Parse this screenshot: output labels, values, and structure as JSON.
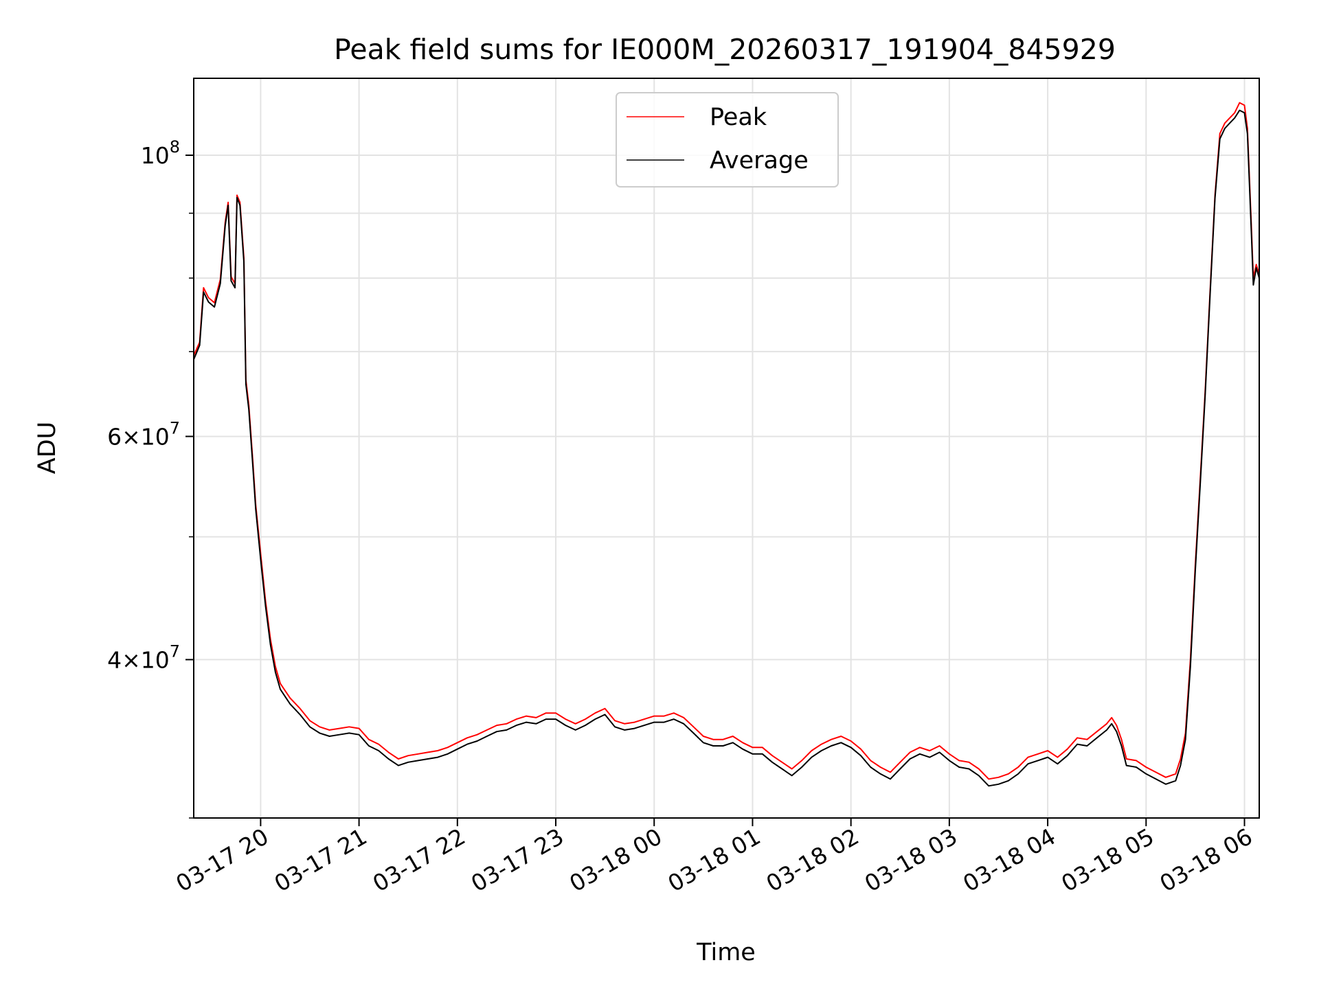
{
  "chart_data": {
    "type": "line",
    "title": "Peak field sums for IE000M_20260317_191904_845929",
    "xlabel": "Time",
    "ylabel": "ADU",
    "yscale": "log",
    "ylim": [
      30000000,
      115000000
    ],
    "xlim_hours": [
      -0.68,
      10.15
    ],
    "x_unit": "hours since 03-17 20:00",
    "grid": true,
    "legend_position": "top-center",
    "x_ticks": [
      {
        "hour": 0,
        "label": "03-17 20"
      },
      {
        "hour": 1,
        "label": "03-17 21"
      },
      {
        "hour": 2,
        "label": "03-17 22"
      },
      {
        "hour": 3,
        "label": "03-17 23"
      },
      {
        "hour": 4,
        "label": "03-18 00"
      },
      {
        "hour": 5,
        "label": "03-18 01"
      },
      {
        "hour": 6,
        "label": "03-18 02"
      },
      {
        "hour": 7,
        "label": "03-18 03"
      },
      {
        "hour": 8,
        "label": "03-18 04"
      },
      {
        "hour": 9,
        "label": "03-18 05"
      },
      {
        "hour": 10,
        "label": "03-18 06"
      }
    ],
    "y_ticks_major": [
      {
        "value": 40000000,
        "base": "4",
        "exp": "7",
        "mantissa": true
      },
      {
        "value": 60000000,
        "base": "6",
        "exp": "7",
        "mantissa": true
      },
      {
        "value": 100000000,
        "base": "10",
        "exp": "8",
        "mantissa": false
      }
    ],
    "y_ticks_minor": [
      30000000,
      50000000,
      70000000,
      80000000,
      90000000
    ],
    "series": [
      {
        "name": "Peak",
        "color": "#ff0000",
        "points": [
          [
            -0.68,
            69500000
          ],
          [
            -0.62,
            71200000
          ],
          [
            -0.58,
            78600000
          ],
          [
            -0.53,
            77200000
          ],
          [
            -0.47,
            76500000
          ],
          [
            -0.41,
            79800000
          ],
          [
            -0.36,
            88500000
          ],
          [
            -0.33,
            91800000
          ],
          [
            -0.3,
            80200000
          ],
          [
            -0.26,
            79200000
          ],
          [
            -0.24,
            93000000
          ],
          [
            -0.21,
            91800000
          ],
          [
            -0.17,
            83000000
          ],
          [
            -0.15,
            66500000
          ],
          [
            -0.12,
            63500000
          ],
          [
            -0.08,
            57500000
          ],
          [
            -0.05,
            53000000
          ],
          [
            0.0,
            48500000
          ],
          [
            0.05,
            44500000
          ],
          [
            0.1,
            41500000
          ],
          [
            0.15,
            39500000
          ],
          [
            0.2,
            38300000
          ],
          [
            0.3,
            37300000
          ],
          [
            0.4,
            36600000
          ],
          [
            0.5,
            35800000
          ],
          [
            0.6,
            35400000
          ],
          [
            0.7,
            35200000
          ],
          [
            0.8,
            35300000
          ],
          [
            0.9,
            35400000
          ],
          [
            1.0,
            35300000
          ],
          [
            1.1,
            34600000
          ],
          [
            1.2,
            34300000
          ],
          [
            1.3,
            33800000
          ],
          [
            1.4,
            33400000
          ],
          [
            1.5,
            33600000
          ],
          [
            1.6,
            33700000
          ],
          [
            1.7,
            33800000
          ],
          [
            1.8,
            33900000
          ],
          [
            1.9,
            34100000
          ],
          [
            2.0,
            34400000
          ],
          [
            2.1,
            34700000
          ],
          [
            2.2,
            34900000
          ],
          [
            2.3,
            35200000
          ],
          [
            2.4,
            35500000
          ],
          [
            2.5,
            35600000
          ],
          [
            2.6,
            35900000
          ],
          [
            2.7,
            36100000
          ],
          [
            2.8,
            36000000
          ],
          [
            2.9,
            36300000
          ],
          [
            3.0,
            36300000
          ],
          [
            3.1,
            35900000
          ],
          [
            3.2,
            35600000
          ],
          [
            3.3,
            35900000
          ],
          [
            3.4,
            36300000
          ],
          [
            3.5,
            36600000
          ],
          [
            3.6,
            35800000
          ],
          [
            3.7,
            35600000
          ],
          [
            3.8,
            35700000
          ],
          [
            3.9,
            35900000
          ],
          [
            4.0,
            36100000
          ],
          [
            4.1,
            36100000
          ],
          [
            4.2,
            36300000
          ],
          [
            4.3,
            36000000
          ],
          [
            4.4,
            35400000
          ],
          [
            4.5,
            34800000
          ],
          [
            4.6,
            34600000
          ],
          [
            4.7,
            34600000
          ],
          [
            4.8,
            34800000
          ],
          [
            4.9,
            34400000
          ],
          [
            5.0,
            34100000
          ],
          [
            5.1,
            34100000
          ],
          [
            5.2,
            33600000
          ],
          [
            5.3,
            33200000
          ],
          [
            5.4,
            32800000
          ],
          [
            5.5,
            33300000
          ],
          [
            5.6,
            33900000
          ],
          [
            5.7,
            34300000
          ],
          [
            5.8,
            34600000
          ],
          [
            5.9,
            34800000
          ],
          [
            6.0,
            34500000
          ],
          [
            6.1,
            34000000
          ],
          [
            6.2,
            33300000
          ],
          [
            6.3,
            32900000
          ],
          [
            6.4,
            32600000
          ],
          [
            6.5,
            33200000
          ],
          [
            6.6,
            33800000
          ],
          [
            6.7,
            34100000
          ],
          [
            6.8,
            33900000
          ],
          [
            6.9,
            34200000
          ],
          [
            7.0,
            33700000
          ],
          [
            7.1,
            33300000
          ],
          [
            7.2,
            33200000
          ],
          [
            7.3,
            32800000
          ],
          [
            7.4,
            32200000
          ],
          [
            7.5,
            32300000
          ],
          [
            7.6,
            32500000
          ],
          [
            7.7,
            32900000
          ],
          [
            7.8,
            33500000
          ],
          [
            7.9,
            33700000
          ],
          [
            8.0,
            33900000
          ],
          [
            8.1,
            33500000
          ],
          [
            8.2,
            34000000
          ],
          [
            8.3,
            34700000
          ],
          [
            8.4,
            34600000
          ],
          [
            8.5,
            35100000
          ],
          [
            8.6,
            35600000
          ],
          [
            8.65,
            36000000
          ],
          [
            8.7,
            35500000
          ],
          [
            8.75,
            34600000
          ],
          [
            8.8,
            33400000
          ],
          [
            8.9,
            33300000
          ],
          [
            9.0,
            32900000
          ],
          [
            9.1,
            32600000
          ],
          [
            9.2,
            32300000
          ],
          [
            9.3,
            32500000
          ],
          [
            9.35,
            33400000
          ],
          [
            9.4,
            35000000
          ],
          [
            9.45,
            40000000
          ],
          [
            9.5,
            47500000
          ],
          [
            9.55,
            55500000
          ],
          [
            9.6,
            65000000
          ],
          [
            9.65,
            78000000
          ],
          [
            9.7,
            93000000
          ],
          [
            9.75,
            104000000
          ],
          [
            9.8,
            106000000
          ],
          [
            9.85,
            107000000
          ],
          [
            9.9,
            108000000
          ],
          [
            9.95,
            110000000
          ],
          [
            10.0,
            109500000
          ],
          [
            10.03,
            105000000
          ],
          [
            10.05,
            96000000
          ],
          [
            10.07,
            88000000
          ],
          [
            10.09,
            80000000
          ],
          [
            10.12,
            82000000
          ],
          [
            10.15,
            80500000
          ]
        ]
      },
      {
        "name": "Average",
        "color": "#000000",
        "points": [
          [
            -0.68,
            69000000
          ],
          [
            -0.62,
            70800000
          ],
          [
            -0.58,
            78000000
          ],
          [
            -0.53,
            76600000
          ],
          [
            -0.47,
            75900000
          ],
          [
            -0.41,
            79200000
          ],
          [
            -0.36,
            88000000
          ],
          [
            -0.33,
            91300000
          ],
          [
            -0.3,
            79600000
          ],
          [
            -0.26,
            78600000
          ],
          [
            -0.24,
            92600000
          ],
          [
            -0.21,
            91300000
          ],
          [
            -0.17,
            82400000
          ],
          [
            -0.15,
            66000000
          ],
          [
            -0.12,
            63000000
          ],
          [
            -0.08,
            57000000
          ],
          [
            -0.05,
            52600000
          ],
          [
            0.0,
            48000000
          ],
          [
            0.05,
            44100000
          ],
          [
            0.1,
            41100000
          ],
          [
            0.15,
            39100000
          ],
          [
            0.2,
            37900000
          ],
          [
            0.3,
            36900000
          ],
          [
            0.4,
            36200000
          ],
          [
            0.5,
            35400000
          ],
          [
            0.6,
            35000000
          ],
          [
            0.7,
            34800000
          ],
          [
            0.8,
            34900000
          ],
          [
            0.9,
            35000000
          ],
          [
            1.0,
            34900000
          ],
          [
            1.1,
            34200000
          ],
          [
            1.2,
            33900000
          ],
          [
            1.3,
            33400000
          ],
          [
            1.4,
            33000000
          ],
          [
            1.5,
            33200000
          ],
          [
            1.6,
            33300000
          ],
          [
            1.7,
            33400000
          ],
          [
            1.8,
            33500000
          ],
          [
            1.9,
            33700000
          ],
          [
            2.0,
            34000000
          ],
          [
            2.1,
            34300000
          ],
          [
            2.2,
            34500000
          ],
          [
            2.3,
            34800000
          ],
          [
            2.4,
            35100000
          ],
          [
            2.5,
            35200000
          ],
          [
            2.6,
            35500000
          ],
          [
            2.7,
            35700000
          ],
          [
            2.8,
            35600000
          ],
          [
            2.9,
            35900000
          ],
          [
            3.0,
            35900000
          ],
          [
            3.1,
            35500000
          ],
          [
            3.2,
            35200000
          ],
          [
            3.3,
            35500000
          ],
          [
            3.4,
            35900000
          ],
          [
            3.5,
            36200000
          ],
          [
            3.6,
            35400000
          ],
          [
            3.7,
            35200000
          ],
          [
            3.8,
            35300000
          ],
          [
            3.9,
            35500000
          ],
          [
            4.0,
            35700000
          ],
          [
            4.1,
            35700000
          ],
          [
            4.2,
            35900000
          ],
          [
            4.3,
            35600000
          ],
          [
            4.4,
            35000000
          ],
          [
            4.5,
            34400000
          ],
          [
            4.6,
            34200000
          ],
          [
            4.7,
            34200000
          ],
          [
            4.8,
            34400000
          ],
          [
            4.9,
            34000000
          ],
          [
            5.0,
            33700000
          ],
          [
            5.1,
            33700000
          ],
          [
            5.2,
            33200000
          ],
          [
            5.3,
            32800000
          ],
          [
            5.4,
            32400000
          ],
          [
            5.5,
            32900000
          ],
          [
            5.6,
            33500000
          ],
          [
            5.7,
            33900000
          ],
          [
            5.8,
            34200000
          ],
          [
            5.9,
            34400000
          ],
          [
            6.0,
            34100000
          ],
          [
            6.1,
            33600000
          ],
          [
            6.2,
            32900000
          ],
          [
            6.3,
            32500000
          ],
          [
            6.4,
            32200000
          ],
          [
            6.5,
            32800000
          ],
          [
            6.6,
            33400000
          ],
          [
            6.7,
            33700000
          ],
          [
            6.8,
            33500000
          ],
          [
            6.9,
            33800000
          ],
          [
            7.0,
            33300000
          ],
          [
            7.1,
            32900000
          ],
          [
            7.2,
            32800000
          ],
          [
            7.3,
            32400000
          ],
          [
            7.4,
            31800000
          ],
          [
            7.5,
            31900000
          ],
          [
            7.6,
            32100000
          ],
          [
            7.7,
            32500000
          ],
          [
            7.8,
            33100000
          ],
          [
            7.9,
            33300000
          ],
          [
            8.0,
            33500000
          ],
          [
            8.1,
            33100000
          ],
          [
            8.2,
            33600000
          ],
          [
            8.3,
            34300000
          ],
          [
            8.4,
            34200000
          ],
          [
            8.5,
            34700000
          ],
          [
            8.6,
            35200000
          ],
          [
            8.65,
            35600000
          ],
          [
            8.7,
            35100000
          ],
          [
            8.75,
            34200000
          ],
          [
            8.8,
            33000000
          ],
          [
            8.9,
            32900000
          ],
          [
            9.0,
            32500000
          ],
          [
            9.1,
            32200000
          ],
          [
            9.2,
            31900000
          ],
          [
            9.3,
            32100000
          ],
          [
            9.35,
            33000000
          ],
          [
            9.4,
            34600000
          ],
          [
            9.45,
            39500000
          ],
          [
            9.5,
            47000000
          ],
          [
            9.55,
            55000000
          ],
          [
            9.6,
            64500000
          ],
          [
            9.65,
            77500000
          ],
          [
            9.7,
            92500000
          ],
          [
            9.75,
            103000000
          ],
          [
            9.8,
            105000000
          ],
          [
            9.85,
            106000000
          ],
          [
            9.9,
            107000000
          ],
          [
            9.95,
            108500000
          ],
          [
            10.0,
            108000000
          ],
          [
            10.03,
            104000000
          ],
          [
            10.05,
            95000000
          ],
          [
            10.07,
            87000000
          ],
          [
            10.09,
            79000000
          ],
          [
            10.12,
            81500000
          ],
          [
            10.15,
            80000000
          ]
        ]
      }
    ]
  }
}
